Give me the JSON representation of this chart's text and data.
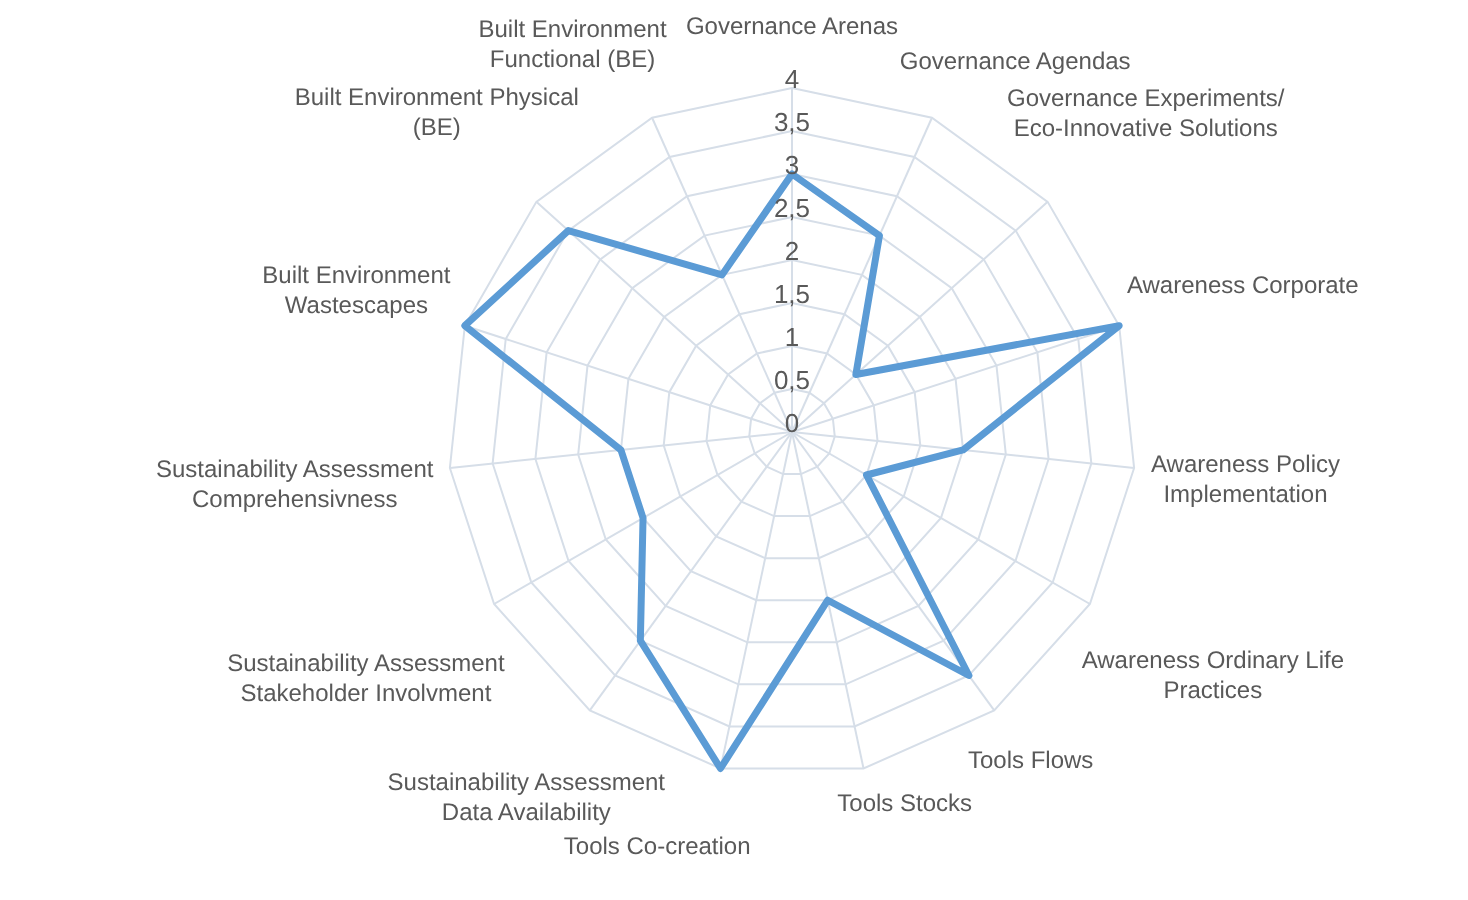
{
  "chart_data": {
    "type": "radar",
    "categories": [
      "Governance Arenas",
      "Governance Agendas",
      "Governance Experiments/Eco-Innovative Solutions",
      "Awareness Corporate",
      "Awareness Policy Implementation",
      "Awareness Ordinary Life Practices",
      "Tools Flows",
      "Tools Stocks",
      "Tools Co-creation",
      "Sustainability Assessment Data Availability",
      "Sustainability Assessment Stakeholder Involvment",
      "Sustainability Assessment Comprehensivness",
      "Built Environment Wastescapes",
      "Built Environment Physical (BE)",
      "Built Environment Functional (BE)"
    ],
    "series": [
      {
        "color": "#5b9bd5",
        "values": [
          3,
          2.5,
          1,
          4,
          2,
          1,
          3.5,
          2,
          4,
          3,
          2,
          2,
          4,
          3.5,
          2
        ]
      }
    ],
    "ylim": [
      0,
      4
    ],
    "yticks": [
      0,
      {
        "value": 0.5,
        "label": "0,5"
      },
      1,
      {
        "value": 1.5,
        "label": "1,5"
      },
      2,
      {
        "value": 2.5,
        "label": "2,5"
      },
      3,
      {
        "value": 3.5,
        "label": "3,5"
      },
      4
    ],
    "grid": true,
    "legend": false,
    "marker": "none"
  }
}
